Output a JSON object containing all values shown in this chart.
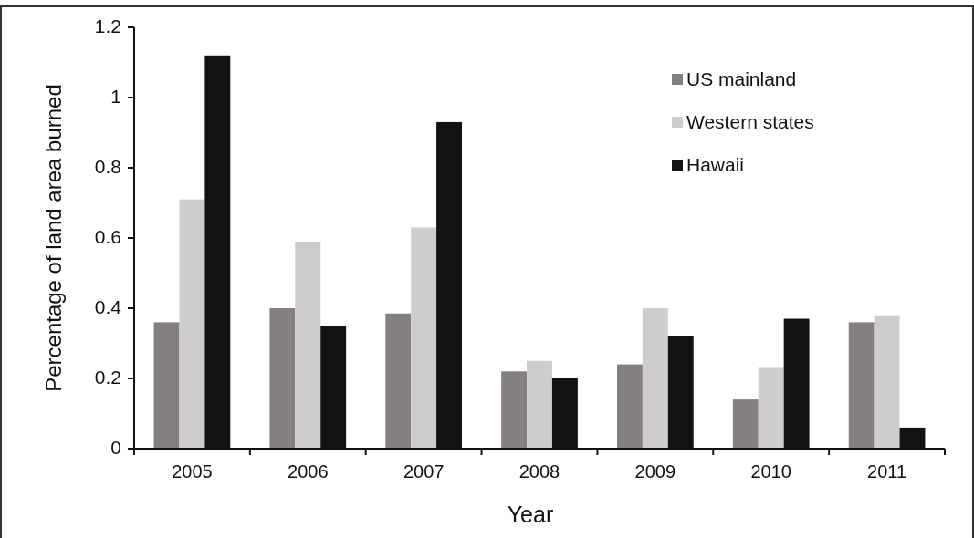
{
  "chart_data": {
    "type": "bar",
    "xlabel": "Year",
    "ylabel": "Percentage of land area burned",
    "categories": [
      "2005",
      "2006",
      "2007",
      "2008",
      "2009",
      "2010",
      "2011"
    ],
    "series": [
      {
        "name": "US mainland",
        "color": "#858080",
        "values": [
          0.36,
          0.4,
          0.385,
          0.22,
          0.24,
          0.14,
          0.36
        ]
      },
      {
        "name": "Western states",
        "color": "#cfcccc",
        "values": [
          0.71,
          0.59,
          0.63,
          0.25,
          0.4,
          0.23,
          0.38
        ]
      },
      {
        "name": "Hawaii",
        "color": "#141210",
        "values": [
          1.12,
          0.35,
          0.93,
          0.2,
          0.32,
          0.37,
          0.06
        ]
      }
    ],
    "ylim": [
      0,
      1.2
    ],
    "yticks": [
      0,
      0.2,
      0.4,
      0.6,
      0.8,
      1,
      1.2
    ],
    "legend": "top right"
  }
}
